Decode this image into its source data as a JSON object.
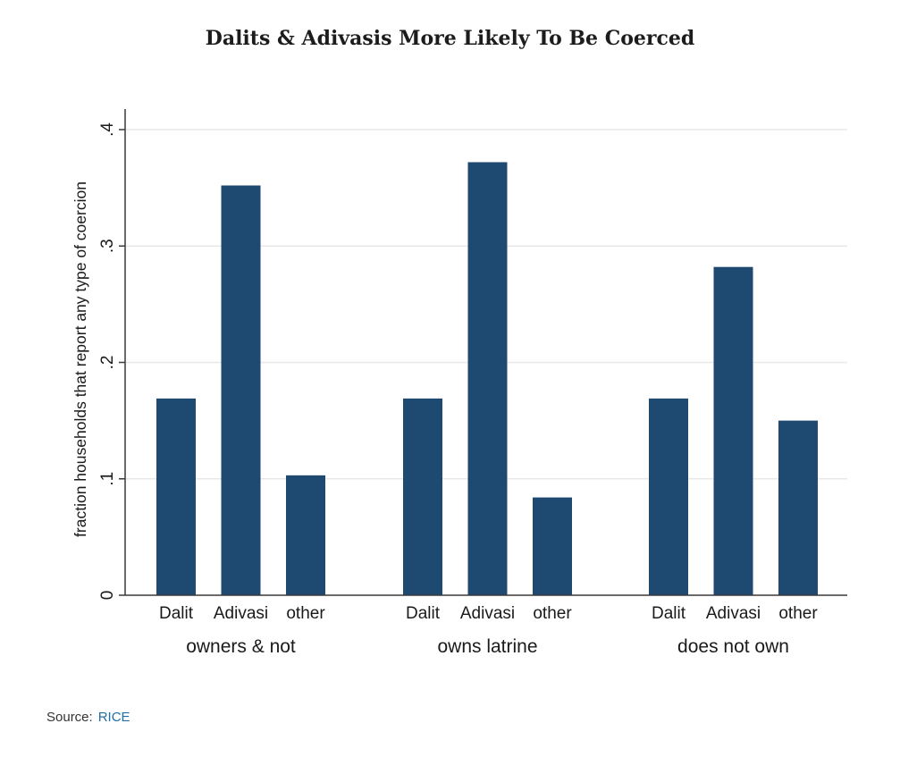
{
  "title": "Dalits & Adivasis More Likely To Be Coerced",
  "source": {
    "label": "Source:",
    "link_text": "RICE"
  },
  "colors": {
    "bar": "#1e4a72",
    "axis": "#3a3a3a",
    "grid": "#e8e8e8",
    "text": "#1a1a1a",
    "link": "#1f6fa8"
  },
  "chart_data": {
    "type": "bar",
    "ylabel": "fraction households that report any type of coercion",
    "ylim": [
      0,
      0.4
    ],
    "yticks": [
      {
        "value": 0,
        "label": "0"
      },
      {
        "value": 0.1,
        "label": ".1"
      },
      {
        "value": 0.2,
        "label": ".2"
      },
      {
        "value": 0.3,
        "label": ".3"
      },
      {
        "value": 0.4,
        "label": ".4"
      }
    ],
    "grid": true,
    "groups": [
      {
        "name": "owners & not",
        "categories": [
          "Dalit",
          "Adivasi",
          "other"
        ],
        "values": [
          0.169,
          0.352,
          0.103
        ]
      },
      {
        "name": "owns latrine",
        "categories": [
          "Dalit",
          "Adivasi",
          "other"
        ],
        "values": [
          0.169,
          0.372,
          0.084
        ]
      },
      {
        "name": "does not own",
        "categories": [
          "Dalit",
          "Adivasi",
          "other"
        ],
        "values": [
          0.169,
          0.282,
          0.15
        ]
      }
    ]
  }
}
